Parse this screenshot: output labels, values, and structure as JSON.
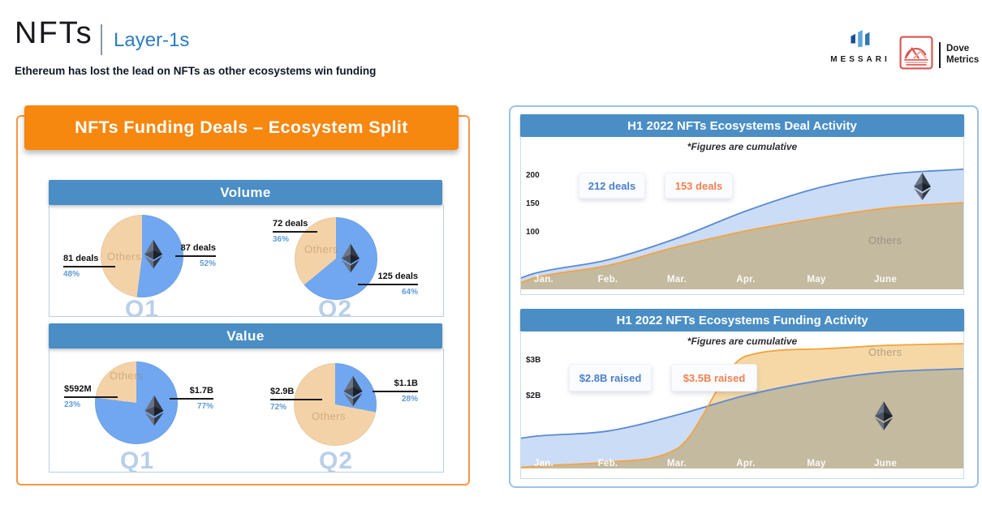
{
  "header": {
    "title": "NFTs",
    "tag": "Layer-1s",
    "subtitle": "Ethereum has lost the lead on NFTs as other ecosystems win funding"
  },
  "logos": {
    "messari": "MESSARI",
    "dove_line1": "Dove",
    "dove_line2": "Metrics"
  },
  "left_panel": {
    "title": "NFTs Funding Deals – Ecosystem Split",
    "sections": [
      {
        "title": "Volume"
      },
      {
        "title": "Value"
      }
    ]
  },
  "colors": {
    "accent_orange": "#F6870F",
    "header_blue": "#4A8EC5",
    "pie_ethereum": "#71A7F0",
    "pie_others": "#F4D2A8",
    "area_blue_line": "#5B8AD2",
    "area_blue_fill": "#CBDCF6",
    "area_orange_line": "#F5A33F",
    "area_orange_fill": "#F6D8A6"
  },
  "chart_data": [
    {
      "type": "pie",
      "section": "Volume",
      "caption": "Q1",
      "unit": "deals",
      "slices": [
        {
          "name": "Ethereum",
          "display": "87 deals",
          "pct": 52,
          "pct_display": "52%"
        },
        {
          "name": "Others",
          "display": "81 deals",
          "pct": 48,
          "pct_display": "48%"
        }
      ]
    },
    {
      "type": "pie",
      "section": "Volume",
      "caption": "Q2",
      "unit": "deals",
      "slices": [
        {
          "name": "Ethereum",
          "display": "125 deals",
          "pct": 64,
          "pct_display": "64%"
        },
        {
          "name": "Others",
          "display": "72 deals",
          "pct": 36,
          "pct_display": "36%"
        }
      ]
    },
    {
      "type": "pie",
      "section": "Value",
      "caption": "Q1",
      "unit": "USD",
      "slices": [
        {
          "name": "Ethereum",
          "display": "$1.7B",
          "pct": 77,
          "pct_display": "77%"
        },
        {
          "name": "Others",
          "display": "$592M",
          "pct": 23,
          "pct_display": "23%"
        }
      ]
    },
    {
      "type": "pie",
      "section": "Value",
      "caption": "Q2",
      "unit": "USD",
      "slices": [
        {
          "name": "Ethereum",
          "display": "$1.1B",
          "pct": 28,
          "pct_display": "28%"
        },
        {
          "name": "Others",
          "display": "$2.9B",
          "pct": 72,
          "pct_display": "72%"
        }
      ]
    },
    {
      "type": "area",
      "title": "H1 2022 NFTs Ecosystems Deal Activity",
      "note": "*Figures are cumulative",
      "others_label": "Others",
      "x": [
        "Jan.",
        "Feb.",
        "Mar.",
        "Apr.",
        "May",
        "June"
      ],
      "yticks": [
        "200",
        "150",
        "100"
      ],
      "ytick_values": [
        200,
        150,
        100
      ],
      "ylim": [
        0,
        230
      ],
      "series": [
        {
          "name": "Ethereum",
          "badge": "212 deals",
          "color": "#4A7FC9",
          "start": 20,
          "values": [
            28,
            52,
            90,
            138,
            178,
            202
          ],
          "end": 212
        },
        {
          "name": "Others",
          "badge": "153 deals",
          "color": "#F0824F",
          "start": 12,
          "values": [
            20,
            42,
            75,
            103,
            125,
            143
          ],
          "end": 153
        }
      ]
    },
    {
      "type": "area",
      "title": "H1 2022 NFTs Ecosystems Funding Activity",
      "note": "*Figures are cumulative",
      "others_label": "Others",
      "x": [
        "Jan.",
        "Feb.",
        "Mar.",
        "Apr.",
        "May",
        "June"
      ],
      "yticks": [
        "$3B",
        "$2B"
      ],
      "ytick_values": [
        3,
        2
      ],
      "ylim": [
        0,
        3.8
      ],
      "series": [
        {
          "name": "Ethereum",
          "badge": "$2.8B raised",
          "color": "#4A7FC9",
          "start": 0.85,
          "values": [
            0.9,
            1.05,
            1.5,
            2.05,
            2.45,
            2.7
          ],
          "end": 2.8
        },
        {
          "name": "Others",
          "badge": "$3.5B raised",
          "color": "#F0824F",
          "start": 0.03,
          "values": [
            0.06,
            0.18,
            0.55,
            3.15,
            3.35,
            3.45
          ],
          "end": 3.5
        }
      ]
    }
  ]
}
